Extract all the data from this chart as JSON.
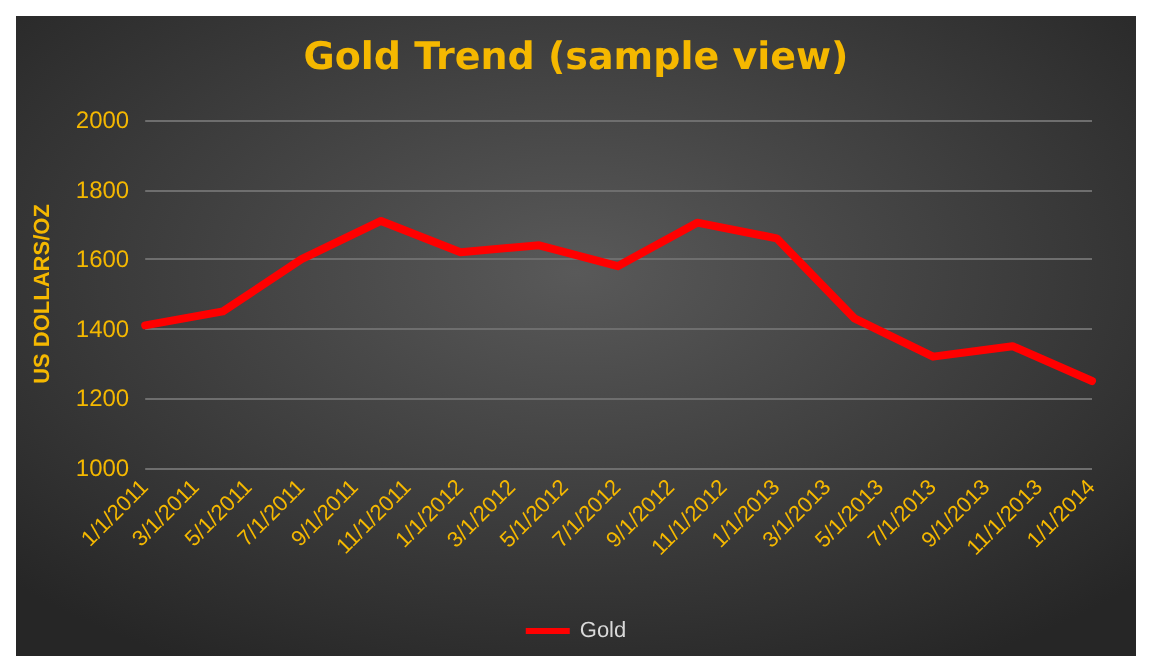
{
  "chart_data": {
    "type": "line",
    "title": "Gold Trend (sample view)",
    "ylabel": "US DOLLARS/OZ",
    "x": [
      "2011-01-01",
      "2011-04-01",
      "2011-07-01",
      "2011-10-01",
      "2012-01-01",
      "2012-04-01",
      "2012-07-01",
      "2012-10-01",
      "2013-01-01",
      "2013-04-01",
      "2013-07-01",
      "2013-10-01",
      "2014-01-01"
    ],
    "series": [
      {
        "name": "Gold",
        "color": "#ff0000",
        "values": [
          1410,
          1450,
          1600,
          1710,
          1620,
          1640,
          1580,
          1705,
          1660,
          1430,
          1320,
          1350,
          1250
        ]
      }
    ],
    "xlim": [
      "2011-01-01",
      "2014-01-01"
    ],
    "xticks": [
      {
        "value": "2011-01-01",
        "label": "1/1/2011"
      },
      {
        "value": "2011-03-01",
        "label": "3/1/2011"
      },
      {
        "value": "2011-05-01",
        "label": "5/1/2011"
      },
      {
        "value": "2011-07-01",
        "label": "7/1/2011"
      },
      {
        "value": "2011-09-01",
        "label": "9/1/2011"
      },
      {
        "value": "2011-11-01",
        "label": "11/1/2011"
      },
      {
        "value": "2012-01-01",
        "label": "1/1/2012"
      },
      {
        "value": "2012-03-01",
        "label": "3/1/2012"
      },
      {
        "value": "2012-05-01",
        "label": "5/1/2012"
      },
      {
        "value": "2012-07-01",
        "label": "7/1/2012"
      },
      {
        "value": "2012-09-01",
        "label": "9/1/2012"
      },
      {
        "value": "2012-11-01",
        "label": "11/1/2012"
      },
      {
        "value": "2013-01-01",
        "label": "1/1/2013"
      },
      {
        "value": "2013-03-01",
        "label": "3/1/2013"
      },
      {
        "value": "2013-05-01",
        "label": "5/1/2013"
      },
      {
        "value": "2013-07-01",
        "label": "7/1/2013"
      },
      {
        "value": "2013-09-01",
        "label": "9/1/2013"
      },
      {
        "value": "2013-11-01",
        "label": "11/1/2013"
      },
      {
        "value": "2014-01-01",
        "label": "1/1/2014"
      }
    ],
    "ylim": [
      1000,
      2000
    ],
    "yticks": [
      1000,
      1200,
      1400,
      1600,
      1800,
      2000
    ],
    "grid": "y",
    "legend": "bottom",
    "marker": "none",
    "line_style": "solid"
  }
}
